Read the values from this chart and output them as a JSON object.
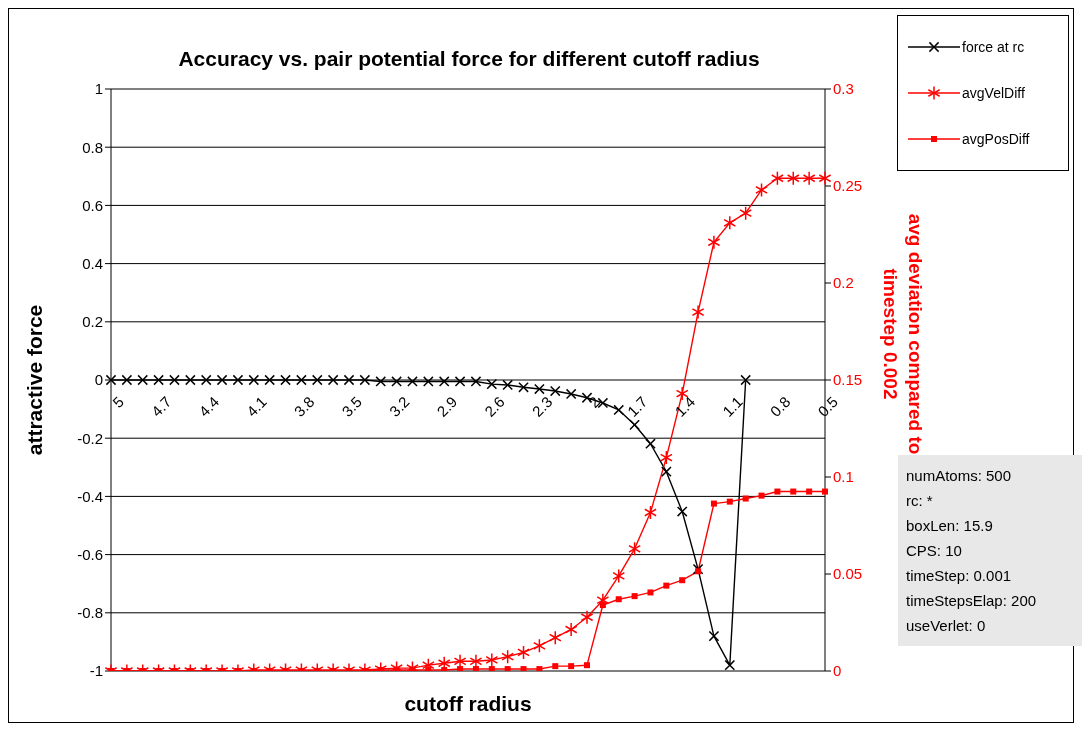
{
  "chart_data": {
    "type": "line",
    "title": "Accuracy vs. pair potential force for different cutoff radius",
    "xlabel": "cutoff radius",
    "ylabel": "attractive force",
    "y2label": "avg deviation compared to timestep 0.002",
    "categories": [
      "5",
      null,
      null,
      "4.7",
      null,
      null,
      "4.4",
      null,
      null,
      "4.1",
      null,
      null,
      "3.8",
      null,
      null,
      "3.5",
      null,
      null,
      "3.2",
      null,
      null,
      "2.9",
      null,
      null,
      "2.6",
      null,
      null,
      "2.3",
      null,
      null,
      "2",
      null,
      null,
      "1.7",
      null,
      null,
      "1.4",
      null,
      null,
      "1.1",
      null,
      null,
      "0.8",
      null,
      null,
      "0.5"
    ],
    "series": [
      {
        "name": "force at rc",
        "color": "#000000",
        "marker": "cross",
        "values": [
          0,
          0,
          0,
          0,
          0,
          0,
          0,
          0,
          0,
          0,
          0,
          0,
          0,
          0,
          0,
          0,
          0,
          -0.005,
          -0.005,
          -0.005,
          -0.005,
          -0.005,
          -0.005,
          -0.005,
          -0.014,
          -0.017,
          -0.025,
          -0.031,
          -0.038,
          -0.048,
          -0.061,
          -0.079,
          -0.103,
          -0.154,
          -0.219,
          -0.315,
          -0.452,
          -0.65,
          -0.88,
          -0.98,
          0,
          null,
          null,
          null,
          null,
          null
        ]
      },
      {
        "name": "avgVelDiff",
        "color": "#ff0000",
        "marker": "star",
        "axis": "y2",
        "values": [
          0,
          0,
          0,
          0,
          0,
          0,
          0,
          0,
          0,
          0.0005,
          0.0005,
          0.0005,
          0.0005,
          0.0005,
          0.0005,
          0.0005,
          0.0005,
          0.001,
          0.0015,
          0.0015,
          0.003,
          0.004,
          0.005,
          0.005,
          0.0057,
          0.0074,
          0.0096,
          0.013,
          0.0172,
          0.0214,
          0.0277,
          0.0365,
          0.049,
          0.063,
          0.0817,
          0.11,
          0.143,
          0.185,
          0.221,
          0.231,
          0.236,
          0.248,
          0.254,
          0.254,
          0.254,
          0.254
        ]
      },
      {
        "name": "avgPosDiff",
        "color": "#ff0000",
        "marker": "square",
        "axis": "y2",
        "values": [
          0,
          0,
          0,
          0,
          0,
          0,
          0,
          0,
          0,
          0,
          0,
          0,
          0,
          0,
          0,
          0,
          0,
          0.0005,
          0.0005,
          0.0005,
          0.0005,
          0.0005,
          0.001,
          0.001,
          0.001,
          0.001,
          0.001,
          0.001,
          0.0025,
          0.0025,
          0.003,
          0.034,
          0.037,
          0.0386,
          0.0405,
          0.044,
          0.0468,
          0.0514,
          0.0863,
          0.0873,
          0.0889,
          0.0904,
          0.0925,
          0.0925,
          0.0925,
          0.0925
        ]
      }
    ],
    "ylim": [
      -1,
      1
    ],
    "yticks": [
      -1,
      -0.8,
      -0.6,
      -0.4,
      -0.2,
      0,
      0.2,
      0.4,
      0.6,
      0.8,
      1
    ],
    "y2lim": [
      0,
      0.3
    ],
    "y2ticks": [
      0,
      0.05,
      0.1,
      0.15,
      0.2,
      0.25,
      0.3
    ],
    "grid": "y",
    "legend": "top right",
    "line_style": "solid",
    "annotations": [
      "numAtoms: 500",
      "rc: *",
      "boxLen: 15.9",
      "CPS: 10",
      "timeStep: 0.001",
      "timeStepsElap: 200",
      "useVerlet: 0"
    ]
  }
}
